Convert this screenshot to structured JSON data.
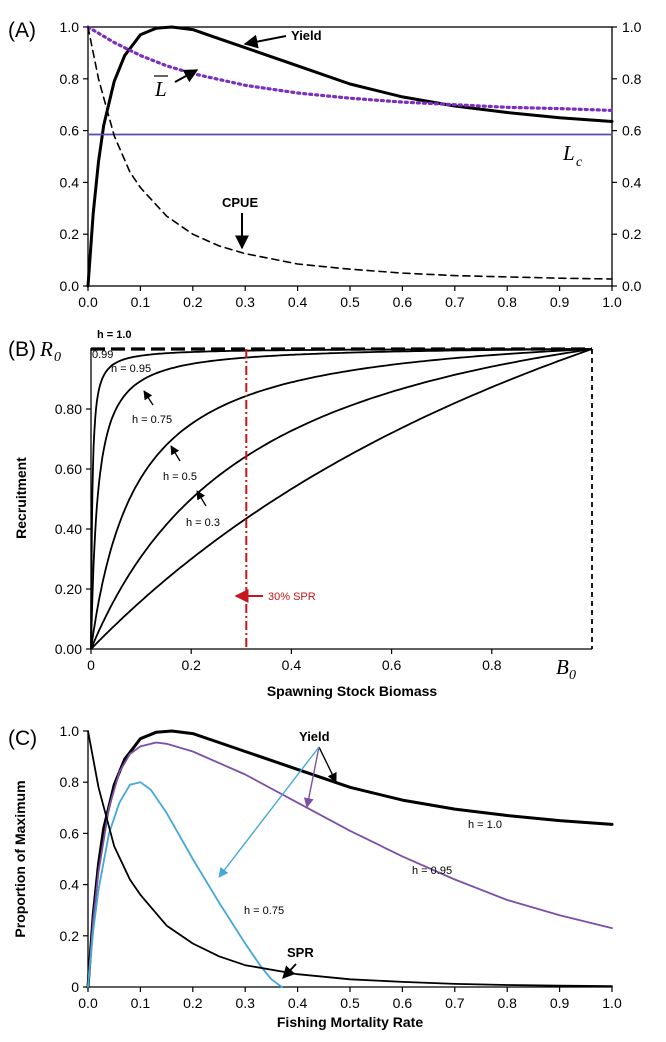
{
  "chart_data": [
    {
      "panel": "(A)",
      "type": "line",
      "xlim": [
        0,
        1
      ],
      "ylim": [
        0,
        1
      ],
      "x_ticks": [
        "0.0",
        "0.1",
        "0.2",
        "0.3",
        "0.4",
        "0.5",
        "0.6",
        "0.7",
        "0.8",
        "0.9",
        "1.0"
      ],
      "y_ticks": [
        "0.0",
        "0.2",
        "0.4",
        "0.6",
        "0.8",
        "1.0"
      ],
      "y_ticks_right": [
        "0.0",
        "0.2",
        "0.4",
        "0.6",
        "0.8",
        "1.0"
      ],
      "grid": false,
      "series": [
        {
          "name": "Yield",
          "style": "solid",
          "color": "#000000",
          "x": [
            0,
            0.01,
            0.02,
            0.03,
            0.05,
            0.07,
            0.1,
            0.13,
            0.16,
            0.2,
            0.25,
            0.3,
            0.4,
            0.5,
            0.6,
            0.7,
            0.8,
            0.9,
            1.0
          ],
          "y": [
            0,
            0.28,
            0.48,
            0.62,
            0.79,
            0.89,
            0.97,
            0.995,
            1.0,
            0.99,
            0.955,
            0.92,
            0.85,
            0.78,
            0.73,
            0.695,
            0.67,
            0.65,
            0.635
          ]
        },
        {
          "name": "L",
          "style": "dotted",
          "color": "#7b2fbf",
          "x": [
            0,
            0.05,
            0.1,
            0.15,
            0.2,
            0.3,
            0.4,
            0.5,
            0.6,
            0.7,
            0.8,
            0.9,
            1.0
          ],
          "y": [
            1.0,
            0.94,
            0.89,
            0.85,
            0.82,
            0.775,
            0.745,
            0.725,
            0.71,
            0.7,
            0.69,
            0.685,
            0.678
          ]
        },
        {
          "name": "Lc",
          "style": "solid",
          "color": "#5b4aa8",
          "x": [
            0,
            1
          ],
          "y": [
            0.585,
            0.585
          ]
        },
        {
          "name": "CPUE",
          "style": "dashed",
          "color": "#000000",
          "x": [
            0,
            0.02,
            0.05,
            0.08,
            0.1,
            0.15,
            0.2,
            0.25,
            0.3,
            0.4,
            0.5,
            0.6,
            0.7,
            0.8,
            0.9,
            1.0
          ],
          "y": [
            1.0,
            0.8,
            0.58,
            0.44,
            0.38,
            0.27,
            0.2,
            0.155,
            0.125,
            0.085,
            0.065,
            0.05,
            0.04,
            0.035,
            0.03,
            0.027
          ]
        }
      ],
      "labels": {
        "yield": "Yield",
        "lbar": "L",
        "lc_main": "L",
        "lc_sub": "c",
        "cpue": "CPUE"
      }
    },
    {
      "panel": "(B)",
      "type": "line",
      "xlabel": "Spawning Stock Biomass",
      "ylabel": "Recruitment",
      "xlim": [
        0,
        1
      ],
      "ylim": [
        0,
        1
      ],
      "x_ticks": [
        "0",
        "0.2",
        "0.4",
        "0.6",
        "0.8"
      ],
      "y_ticks": [
        "0.00",
        "0.20",
        "0.40",
        "0.60",
        "0.80"
      ],
      "y_top_label_main": "R",
      "y_top_label_sub": "0",
      "x_end_label_main": "B",
      "x_end_label_sub": "0",
      "grid": false,
      "steepness": [
        1.0,
        0.99,
        0.95,
        0.75,
        0.5,
        0.3
      ],
      "curve_labels": [
        "h = 1.0",
        "0.99",
        "h = 0.95",
        "h = 0.75",
        "h = 0.5",
        "h = 0.3"
      ],
      "spr_line_x": 0.3,
      "spr_label": "30% SPR"
    },
    {
      "panel": "(C)",
      "type": "line",
      "xlabel": "Fishing Mortality Rate",
      "ylabel": "Proportion of Maximum",
      "xlim": [
        0,
        1
      ],
      "ylim": [
        0,
        1
      ],
      "x_ticks": [
        "0.0",
        "0.1",
        "0.2",
        "0.3",
        "0.4",
        "0.5",
        "0.6",
        "0.7",
        "0.8",
        "0.9",
        "1.0"
      ],
      "y_ticks": [
        "0",
        "0.2",
        "0.4",
        "0.6",
        "0.8",
        "1.0"
      ],
      "grid": false,
      "series": [
        {
          "name": "h = 1.0",
          "style": "solid",
          "color": "#000000",
          "x": [
            0,
            0.01,
            0.02,
            0.03,
            0.05,
            0.07,
            0.1,
            0.13,
            0.16,
            0.2,
            0.25,
            0.3,
            0.4,
            0.5,
            0.6,
            0.7,
            0.8,
            0.9,
            1.0
          ],
          "y": [
            0,
            0.28,
            0.48,
            0.62,
            0.79,
            0.89,
            0.97,
            0.995,
            1.0,
            0.99,
            0.955,
            0.92,
            0.85,
            0.78,
            0.73,
            0.695,
            0.67,
            0.65,
            0.635
          ]
        },
        {
          "name": "h = 0.95",
          "style": "solid",
          "color": "#7d4fa6",
          "x": [
            0,
            0.01,
            0.02,
            0.04,
            0.06,
            0.08,
            0.1,
            0.13,
            0.15,
            0.2,
            0.3,
            0.4,
            0.5,
            0.6,
            0.7,
            0.8,
            0.9,
            1.0
          ],
          "y": [
            0,
            0.26,
            0.45,
            0.7,
            0.84,
            0.91,
            0.94,
            0.955,
            0.95,
            0.92,
            0.83,
            0.72,
            0.61,
            0.51,
            0.42,
            0.34,
            0.28,
            0.23
          ]
        },
        {
          "name": "h = 0.75",
          "style": "solid",
          "color": "#44a8d8",
          "x": [
            0,
            0.01,
            0.02,
            0.04,
            0.06,
            0.08,
            0.1,
            0.12,
            0.15,
            0.2,
            0.25,
            0.3,
            0.33,
            0.35,
            0.37
          ],
          "y": [
            0,
            0.22,
            0.38,
            0.6,
            0.72,
            0.79,
            0.8,
            0.77,
            0.68,
            0.5,
            0.33,
            0.17,
            0.08,
            0.03,
            0.0
          ]
        },
        {
          "name": "SPR",
          "style": "solid",
          "color": "#000000",
          "x": [
            0,
            0.02,
            0.05,
            0.08,
            0.1,
            0.15,
            0.2,
            0.25,
            0.3,
            0.4,
            0.5,
            0.6,
            0.7,
            0.8,
            0.9,
            1.0
          ],
          "y": [
            1.0,
            0.78,
            0.55,
            0.42,
            0.36,
            0.24,
            0.17,
            0.12,
            0.085,
            0.05,
            0.03,
            0.02,
            0.012,
            0.008,
            0.005,
            0.003
          ]
        }
      ],
      "labels": {
        "yield": "Yield",
        "h10": "h = 1.0",
        "h095": "h = 0.95",
        "h075": "h = 0.75",
        "spr": "SPR"
      }
    }
  ]
}
